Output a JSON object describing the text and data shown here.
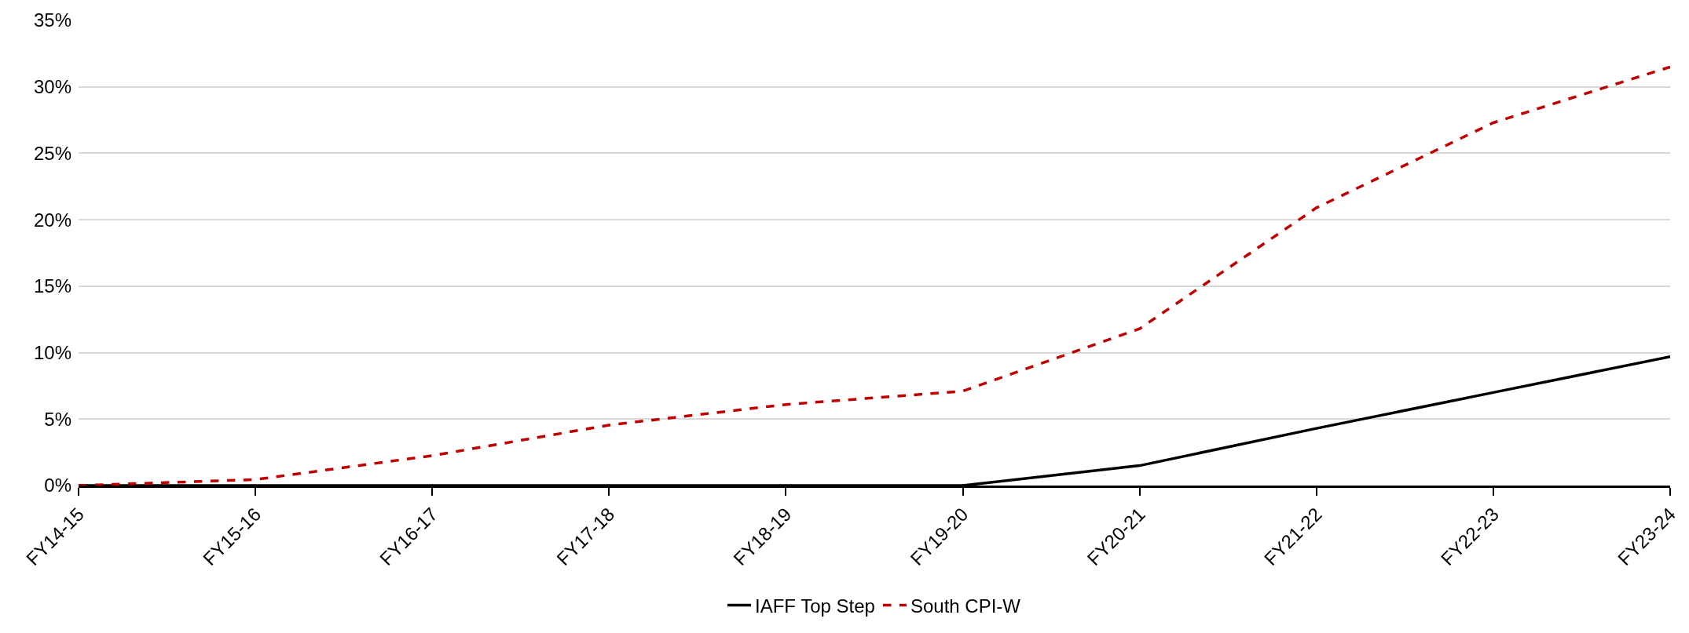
{
  "chart_data": {
    "type": "line",
    "categories": [
      "FY14-15",
      "FY15-16",
      "FY16-17",
      "FY17-18",
      "FY18-19",
      "FY19-20",
      "FY20-21",
      "FY21-22",
      "FY22-23",
      "FY23-24"
    ],
    "series": [
      {
        "name": "IAFF Top Step",
        "color": "#000000",
        "line_style": "solid",
        "values": [
          0,
          0,
          0,
          0,
          0,
          0,
          1.5,
          4.3,
          7.0,
          9.7
        ]
      },
      {
        "name": "South CPI-W",
        "color": "#c00000",
        "line_style": "dashed",
        "values": [
          0,
          0.45,
          2.25,
          4.55,
          6.1,
          7.1,
          11.8,
          20.9,
          27.3,
          31.5
        ]
      }
    ],
    "ylim": [
      0,
      35
    ],
    "yticks": [
      {
        "value": 0,
        "label": "0%"
      },
      {
        "value": 5,
        "label": "5%"
      },
      {
        "value": 10,
        "label": "10%"
      },
      {
        "value": 15,
        "label": "15%"
      },
      {
        "value": 20,
        "label": "20%"
      },
      {
        "value": 25,
        "label": "25%"
      },
      {
        "value": 30,
        "label": "30%"
      },
      {
        "value": 35,
        "label": "35%"
      }
    ],
    "grid": "y",
    "legend": "bottom",
    "marker": "none"
  }
}
